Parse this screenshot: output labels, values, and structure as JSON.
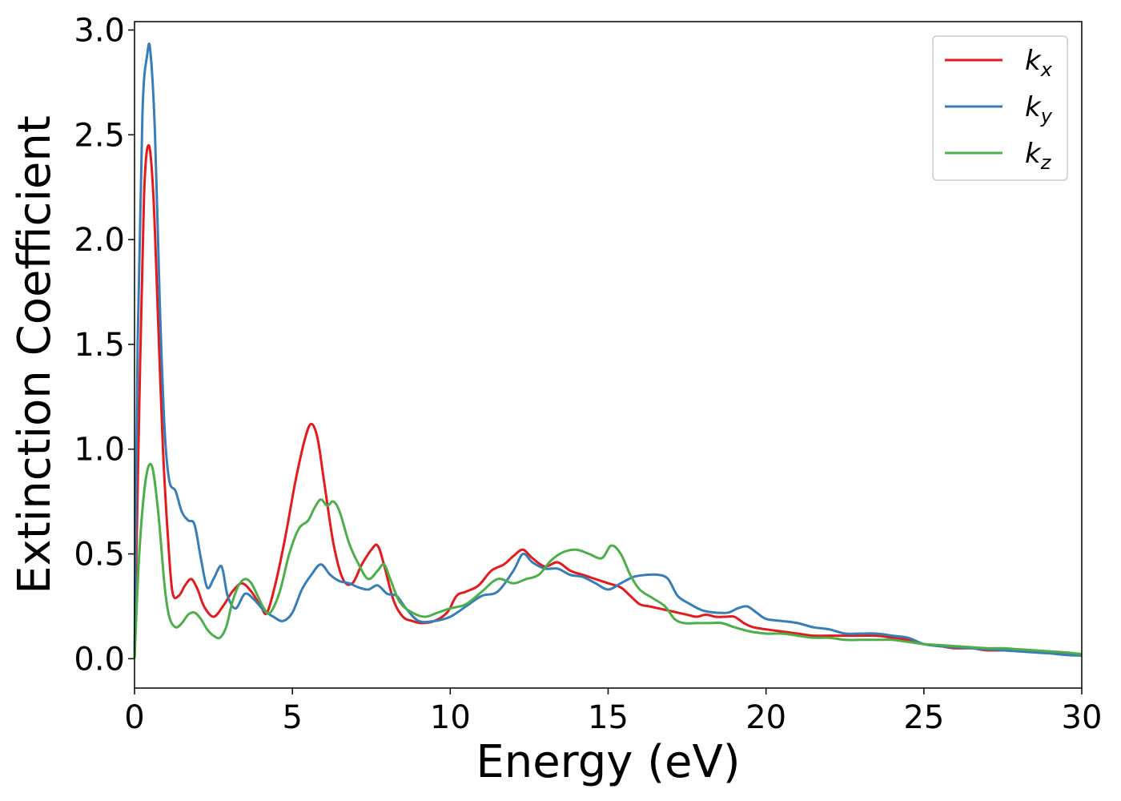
{
  "chart_data": {
    "type": "line",
    "xlabel": "Energy (eV)",
    "ylabel": "Extinction Coefficient",
    "xlim": [
      0,
      30
    ],
    "ylim": [
      -0.14,
      3.04
    ],
    "xticks": [
      0,
      5,
      10,
      15,
      20,
      25,
      30
    ],
    "xtick_labels": [
      "0",
      "5",
      "10",
      "15",
      "20",
      "25",
      "30"
    ],
    "yticks": [
      0.0,
      0.5,
      1.0,
      1.5,
      2.0,
      2.5,
      3.0
    ],
    "ytick_labels": [
      "0.0",
      "0.5",
      "1.0",
      "1.5",
      "2.0",
      "2.5",
      "3.0"
    ],
    "grid": false,
    "legend_position": "top-right",
    "series": [
      {
        "name": "k",
        "subscript": "x",
        "color": "#e41a1c",
        "x": [
          0,
          0.15,
          0.3,
          0.45,
          0.6,
          0.75,
          0.9,
          1.05,
          1.2,
          1.4,
          1.6,
          1.8,
          2.0,
          2.2,
          2.5,
          2.8,
          3.1,
          3.4,
          3.7,
          4.0,
          4.2,
          4.5,
          4.8,
          5.1,
          5.4,
          5.6,
          5.8,
          6.0,
          6.3,
          6.6,
          6.9,
          7.2,
          7.5,
          7.7,
          7.9,
          8.2,
          8.5,
          8.8,
          9.1,
          9.5,
          9.9,
          10.2,
          10.5,
          10.9,
          11.3,
          11.7,
          12.0,
          12.3,
          12.6,
          13.0,
          13.4,
          13.8,
          14.2,
          14.6,
          15.0,
          15.4,
          15.7,
          16.0,
          16.3,
          16.6,
          16.9,
          17.2,
          17.5,
          17.8,
          18.1,
          18.4,
          18.7,
          19.0,
          19.3,
          19.6,
          20.0,
          20.5,
          21.0,
          21.5,
          22.0,
          22.5,
          23.0,
          23.5,
          24.0,
          24.5,
          25.0,
          25.5,
          26.0,
          26.5,
          27.0,
          27.5,
          28.0,
          28.5,
          29.0,
          29.5,
          30.0
        ],
        "y": [
          0.0,
          1.2,
          2.2,
          2.45,
          2.2,
          1.6,
          1.0,
          0.6,
          0.32,
          0.3,
          0.35,
          0.38,
          0.33,
          0.25,
          0.2,
          0.25,
          0.32,
          0.36,
          0.32,
          0.25,
          0.22,
          0.38,
          0.6,
          0.85,
          1.05,
          1.12,
          1.05,
          0.85,
          0.55,
          0.38,
          0.36,
          0.45,
          0.52,
          0.54,
          0.45,
          0.28,
          0.2,
          0.18,
          0.17,
          0.18,
          0.22,
          0.3,
          0.32,
          0.35,
          0.42,
          0.45,
          0.49,
          0.52,
          0.48,
          0.44,
          0.46,
          0.42,
          0.4,
          0.38,
          0.36,
          0.34,
          0.3,
          0.26,
          0.25,
          0.24,
          0.23,
          0.22,
          0.21,
          0.2,
          0.21,
          0.2,
          0.2,
          0.2,
          0.17,
          0.15,
          0.14,
          0.13,
          0.12,
          0.11,
          0.11,
          0.11,
          0.11,
          0.11,
          0.1,
          0.09,
          0.07,
          0.06,
          0.05,
          0.05,
          0.04,
          0.04,
          0.04,
          0.035,
          0.03,
          0.025,
          0.02
        ]
      },
      {
        "name": "k",
        "subscript": "y",
        "color": "#377eb8",
        "x": [
          0,
          0.1,
          0.25,
          0.4,
          0.5,
          0.65,
          0.8,
          0.95,
          1.1,
          1.3,
          1.5,
          1.7,
          1.9,
          2.1,
          2.3,
          2.5,
          2.7,
          2.8,
          2.95,
          3.2,
          3.5,
          3.8,
          4.1,
          4.4,
          4.7,
          5.0,
          5.3,
          5.6,
          5.9,
          6.2,
          6.5,
          6.8,
          7.1,
          7.4,
          7.7,
          8.0,
          8.3,
          8.6,
          9.0,
          9.5,
          10.0,
          10.5,
          11.0,
          11.5,
          12.0,
          12.3,
          12.6,
          13.0,
          13.4,
          13.8,
          14.2,
          14.6,
          15.0,
          15.4,
          15.8,
          16.2,
          16.6,
          16.9,
          17.2,
          17.6,
          18.0,
          18.4,
          18.8,
          19.1,
          19.4,
          19.7,
          20.0,
          20.5,
          21.0,
          21.5,
          22.0,
          22.5,
          23.0,
          23.5,
          24.0,
          24.5,
          25.0,
          25.5,
          26.0,
          26.5,
          27.0,
          27.5,
          28.0,
          28.5,
          29.0,
          29.5,
          30.0
        ],
        "y": [
          0.0,
          1.5,
          2.6,
          2.88,
          2.9,
          2.5,
          1.7,
          1.1,
          0.85,
          0.8,
          0.7,
          0.66,
          0.64,
          0.48,
          0.34,
          0.38,
          0.44,
          0.42,
          0.3,
          0.24,
          0.31,
          0.28,
          0.23,
          0.2,
          0.18,
          0.22,
          0.33,
          0.4,
          0.45,
          0.4,
          0.37,
          0.36,
          0.34,
          0.33,
          0.35,
          0.31,
          0.3,
          0.24,
          0.18,
          0.18,
          0.2,
          0.25,
          0.3,
          0.32,
          0.42,
          0.5,
          0.46,
          0.43,
          0.43,
          0.4,
          0.39,
          0.36,
          0.33,
          0.36,
          0.39,
          0.4,
          0.4,
          0.38,
          0.3,
          0.26,
          0.23,
          0.22,
          0.22,
          0.24,
          0.25,
          0.22,
          0.19,
          0.18,
          0.17,
          0.15,
          0.14,
          0.12,
          0.12,
          0.12,
          0.11,
          0.1,
          0.07,
          0.06,
          0.055,
          0.05,
          0.045,
          0.04,
          0.035,
          0.03,
          0.025,
          0.018,
          0.015
        ]
      },
      {
        "name": "k",
        "subscript": "z",
        "color": "#4daf4a",
        "x": [
          0,
          0.15,
          0.35,
          0.55,
          0.75,
          0.95,
          1.1,
          1.3,
          1.5,
          1.7,
          1.9,
          2.1,
          2.3,
          2.5,
          2.7,
          2.9,
          3.1,
          3.3,
          3.5,
          3.7,
          3.9,
          4.1,
          4.3,
          4.6,
          4.9,
          5.2,
          5.5,
          5.7,
          5.9,
          6.1,
          6.3,
          6.5,
          6.8,
          7.1,
          7.4,
          7.7,
          7.9,
          8.1,
          8.4,
          8.8,
          9.2,
          9.6,
          10.0,
          10.5,
          11.0,
          11.5,
          12.0,
          12.4,
          12.8,
          13.2,
          13.6,
          14.0,
          14.4,
          14.8,
          15.1,
          15.4,
          15.7,
          16.0,
          16.4,
          16.8,
          17.1,
          17.4,
          17.8,
          18.2,
          18.6,
          19.0,
          19.5,
          20.0,
          20.5,
          21.0,
          21.5,
          22.0,
          22.5,
          23.0,
          23.5,
          24.0,
          24.5,
          25.0,
          25.5,
          26.0,
          26.5,
          27.0,
          27.5,
          28.0,
          28.5,
          29.0,
          29.5,
          30.0
        ],
        "y": [
          0.0,
          0.5,
          0.85,
          0.92,
          0.7,
          0.35,
          0.2,
          0.15,
          0.17,
          0.21,
          0.22,
          0.19,
          0.14,
          0.11,
          0.1,
          0.15,
          0.27,
          0.35,
          0.38,
          0.36,
          0.3,
          0.24,
          0.22,
          0.32,
          0.5,
          0.62,
          0.66,
          0.72,
          0.76,
          0.73,
          0.75,
          0.7,
          0.55,
          0.45,
          0.38,
          0.42,
          0.45,
          0.38,
          0.27,
          0.22,
          0.2,
          0.22,
          0.24,
          0.26,
          0.32,
          0.38,
          0.36,
          0.38,
          0.4,
          0.47,
          0.51,
          0.52,
          0.5,
          0.48,
          0.54,
          0.5,
          0.4,
          0.33,
          0.29,
          0.25,
          0.19,
          0.17,
          0.17,
          0.17,
          0.17,
          0.15,
          0.13,
          0.12,
          0.12,
          0.11,
          0.1,
          0.1,
          0.09,
          0.09,
          0.09,
          0.09,
          0.08,
          0.07,
          0.065,
          0.06,
          0.055,
          0.05,
          0.05,
          0.045,
          0.04,
          0.035,
          0.03,
          0.022
        ]
      }
    ]
  }
}
